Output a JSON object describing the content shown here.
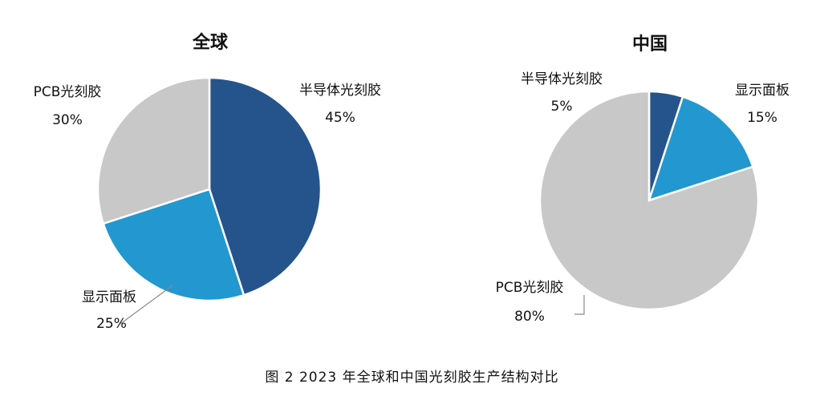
{
  "caption": "图 2  2023 年全球和中国光刻胶生产结构对比",
  "chart_data": [
    {
      "type": "pie",
      "title": "全球",
      "slices": [
        {
          "name": "半导体光刻胶",
          "value": 45,
          "value_label": "45%",
          "color": "#25548c"
        },
        {
          "name": "显示面板",
          "value": 25,
          "value_label": "25%",
          "color": "#2397cf"
        },
        {
          "name": "PCB光刻胶",
          "value": 30,
          "value_label": "30%",
          "color": "#c8c8c8"
        }
      ]
    },
    {
      "type": "pie",
      "title": "中国",
      "slices": [
        {
          "name": "半导体光刻胶",
          "value": 5,
          "value_label": "5%",
          "color": "#25548c"
        },
        {
          "name": "显示面板",
          "value": 15,
          "value_label": "15%",
          "color": "#2397cf"
        },
        {
          "name": "PCB光刻胶",
          "value": 80,
          "value_label": "80%",
          "color": "#c8c8c8"
        }
      ]
    }
  ]
}
